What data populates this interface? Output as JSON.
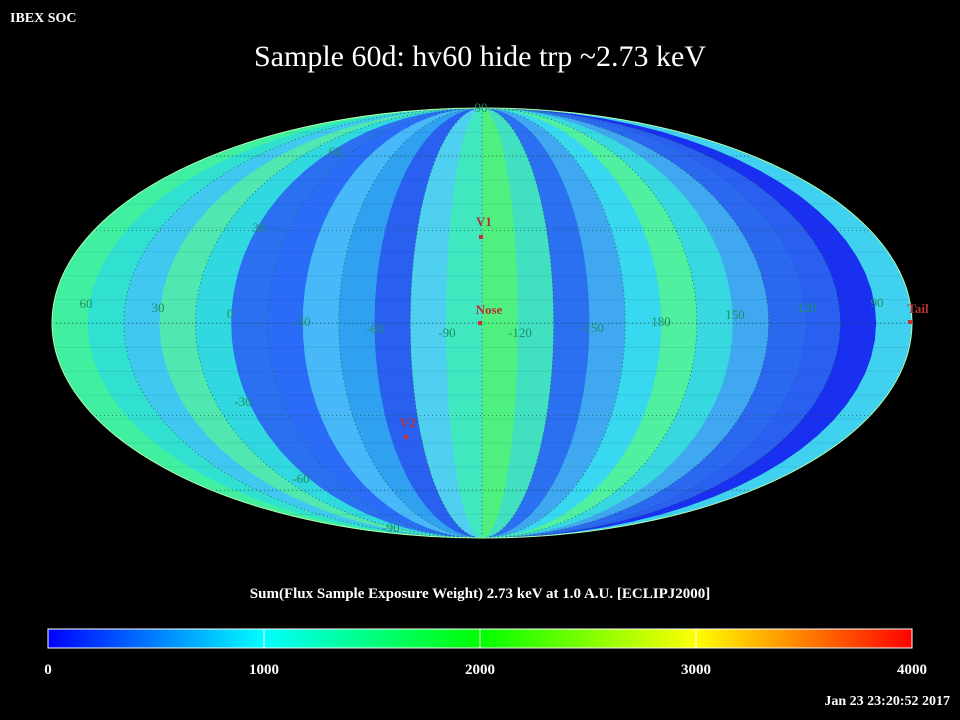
{
  "header": {
    "source": "IBEX SOC",
    "title": "Sample 60d: hv60 hide trp ~2.73 keV"
  },
  "map": {
    "grid_labels": [
      "90",
      "60",
      "30",
      "60",
      "30",
      "0",
      "-30",
      "-60",
      "-90",
      "-120",
      "-150",
      "180",
      "150",
      "120",
      "90",
      "-30",
      "-60",
      "-90"
    ],
    "markers": [
      "V1",
      "Nose",
      "V2",
      "Tail"
    ]
  },
  "colorbar": {
    "label": "Sum(Flux Sample Exposure Weight)  2.73 keV at 1.0 A.U. [ECLIPJ2000]",
    "lim": [
      0,
      4000
    ],
    "ticks": [
      0,
      1000,
      2000,
      3000,
      4000
    ]
  },
  "footer": {
    "timestamp": "Jan 23 23:20:52 2017"
  }
}
